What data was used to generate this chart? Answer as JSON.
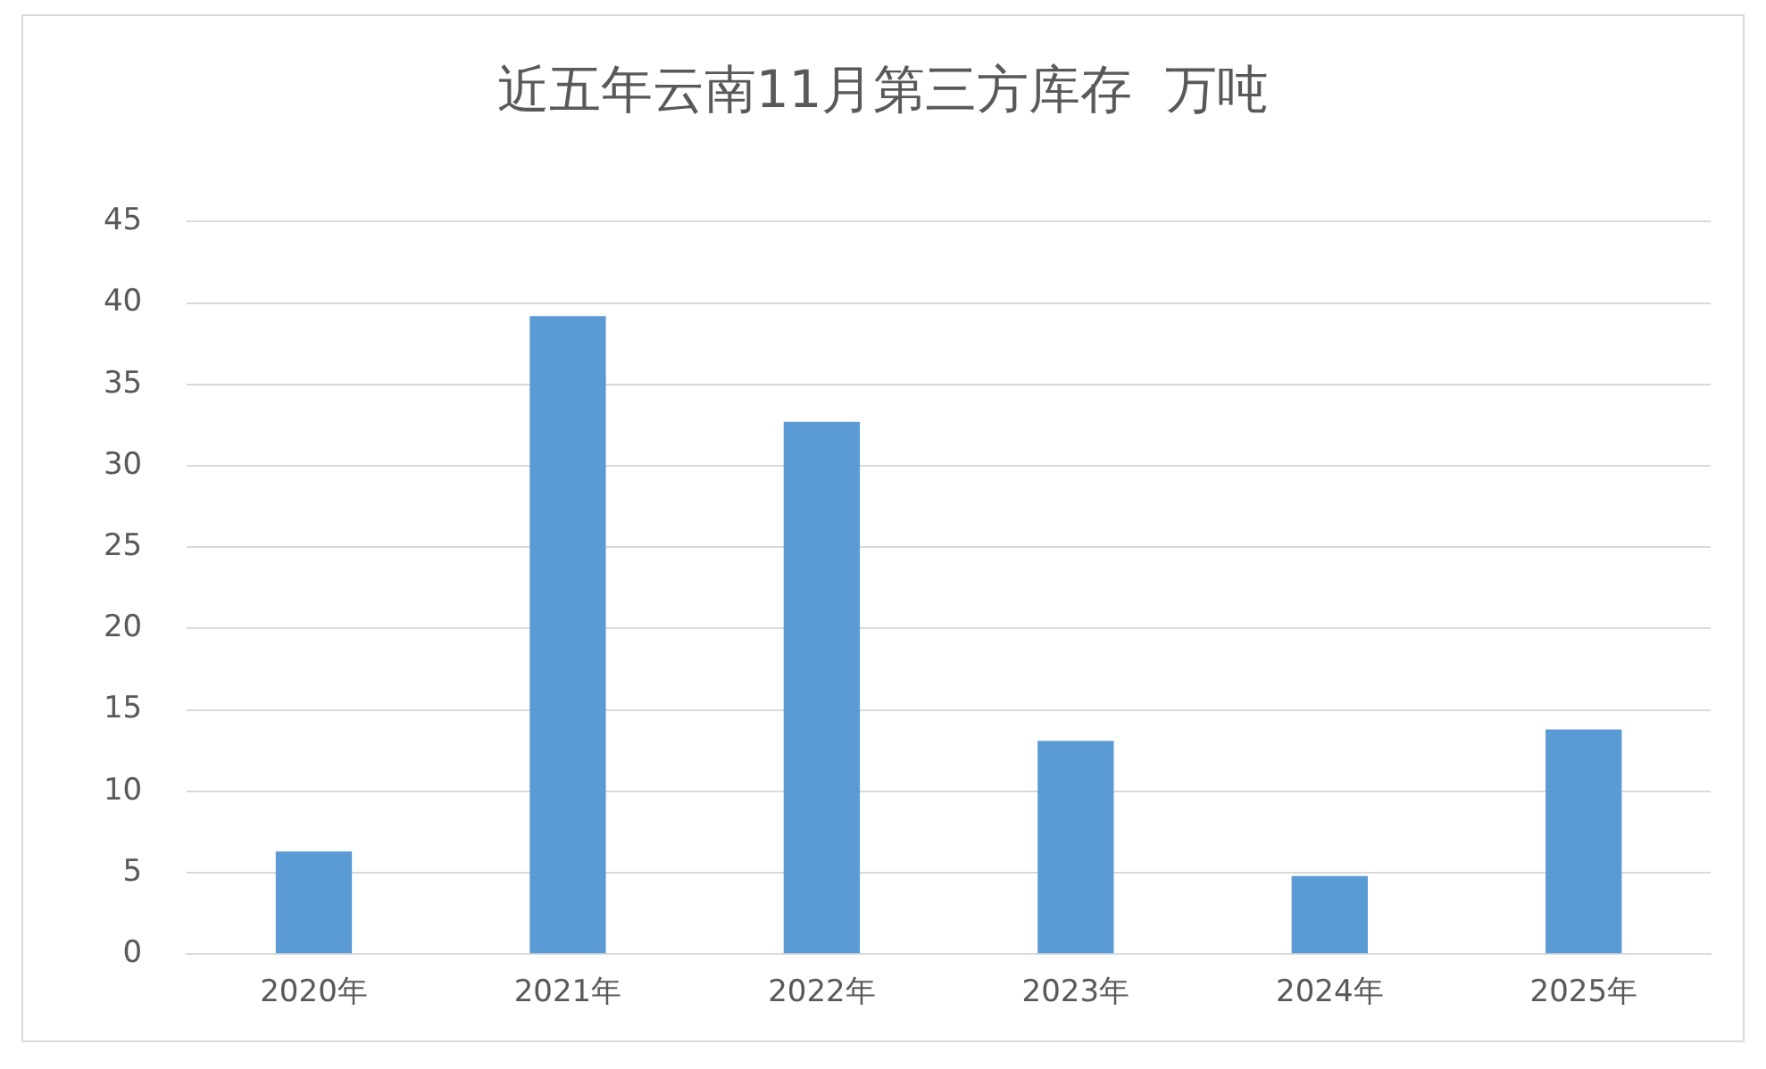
{
  "chart_data": {
    "type": "bar",
    "title": "近五年云南11月第三方库存  万吨",
    "categories": [
      "2020年",
      "2021年",
      "2022年",
      "2023年",
      "2024年",
      "2025年"
    ],
    "values": [
      6.3,
      39.2,
      32.7,
      13.1,
      4.8,
      13.8
    ],
    "color": "#5b9bd5",
    "ylim": [
      0,
      45
    ],
    "yticks": [
      0,
      5,
      10,
      15,
      20,
      25,
      30,
      35,
      40,
      45
    ],
    "grid": "y"
  }
}
